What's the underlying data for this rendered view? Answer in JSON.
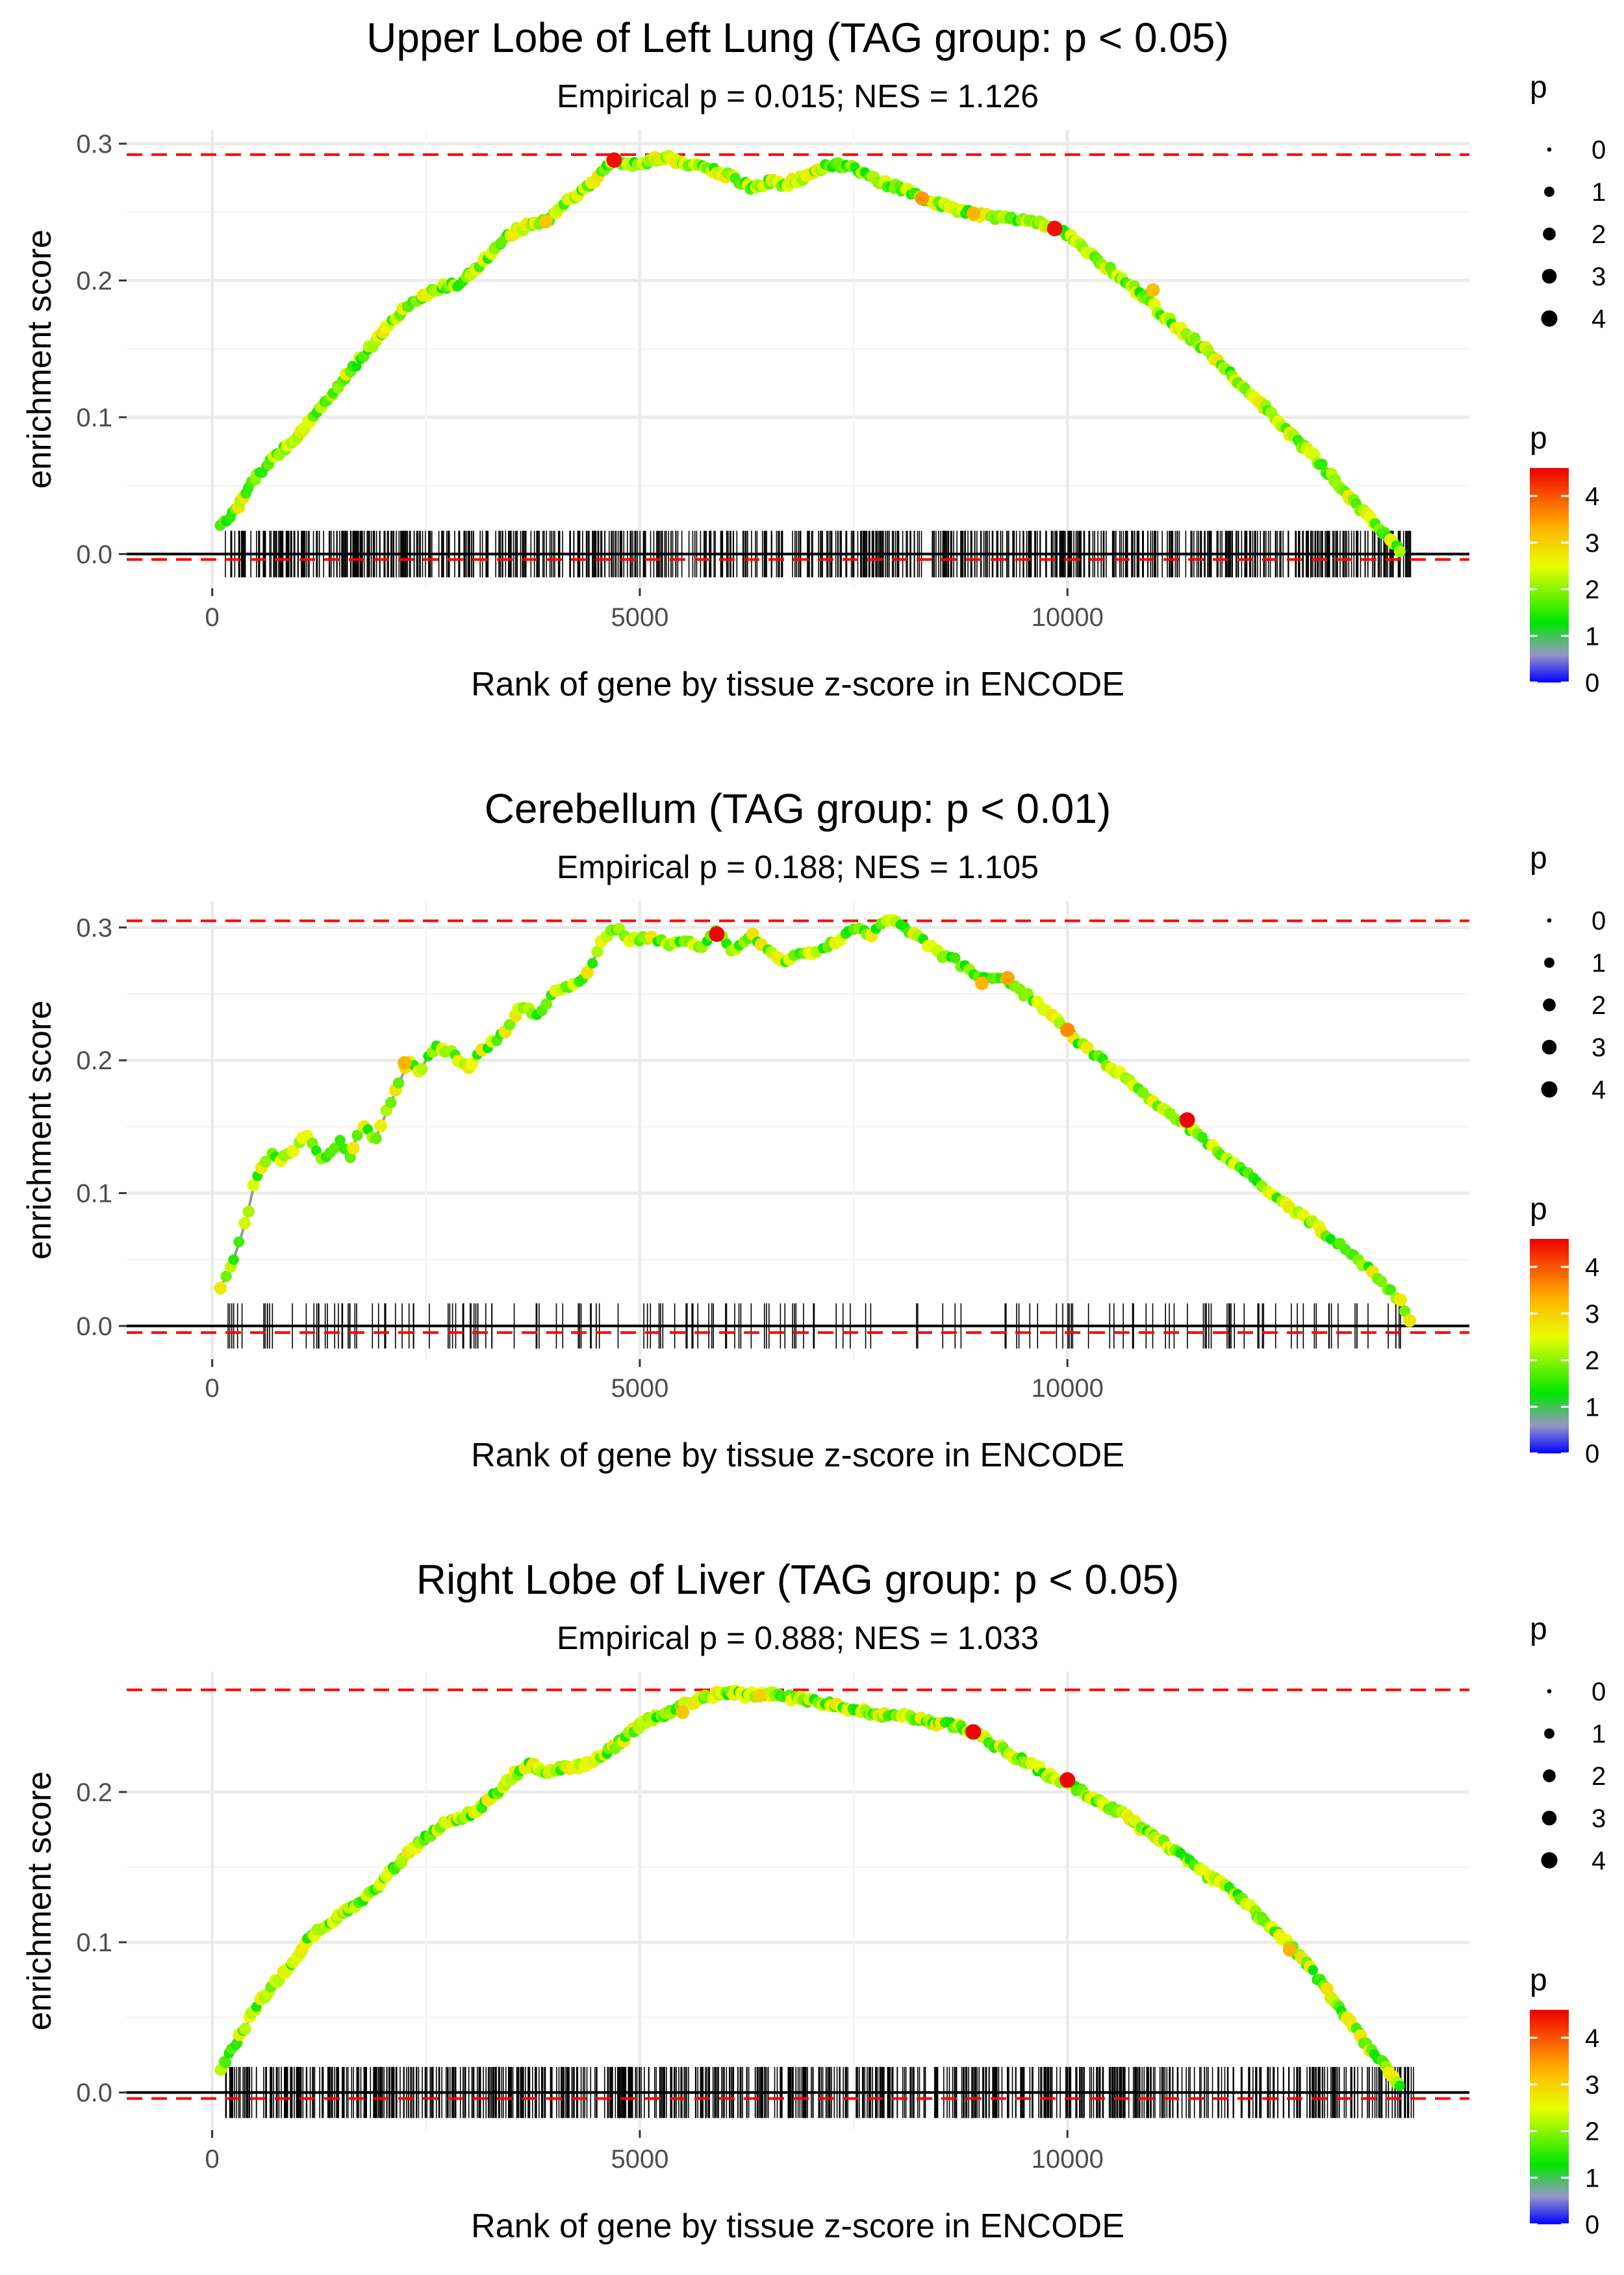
{
  "chart_data": [
    {
      "type": "line",
      "title": "Upper Lobe of Left Lung (TAG group: p < 0.05)",
      "subtitle": "Empirical p = 0.015; NES = 1.126",
      "xlabel": "Rank of gene by tissue z-score in ENCODE",
      "ylabel": "enrichment score",
      "xlim": [
        -1000,
        14700
      ],
      "ylim": [
        -0.025,
        0.31
      ],
      "x_ticks": [
        0,
        5000,
        10000
      ],
      "x_tick_labels": [
        "0",
        "5000",
        "10000"
      ],
      "y_ticks": [
        0.0,
        0.1,
        0.2,
        0.3
      ],
      "y_tick_labels": [
        "0.0",
        "0.1",
        "0.2",
        "0.3"
      ],
      "max_es": 0.292,
      "min_es": -0.004,
      "curve": {
        "x": [
          100,
          300,
          500,
          700,
          900,
          1100,
          1300,
          1500,
          1700,
          1900,
          2100,
          2300,
          2500,
          2700,
          2900,
          3100,
          3300,
          3500,
          3700,
          3900,
          4100,
          4300,
          4500,
          4700,
          4900,
          5100,
          5300,
          5500,
          5700,
          5900,
          6100,
          6300,
          6500,
          6700,
          6900,
          7100,
          7300,
          7500,
          7700,
          7900,
          8100,
          8300,
          8500,
          8700,
          8900,
          9100,
          9300,
          9500,
          9700,
          9900,
          10100,
          10300,
          10500,
          10700,
          10900,
          11100,
          11300,
          11500,
          11700,
          11900,
          12100,
          12300,
          12500,
          12700,
          12900,
          13100,
          13300,
          13500,
          13700,
          13900
        ],
        "y": [
          0.02,
          0.035,
          0.055,
          0.07,
          0.08,
          0.095,
          0.11,
          0.125,
          0.14,
          0.155,
          0.17,
          0.182,
          0.19,
          0.195,
          0.198,
          0.21,
          0.222,
          0.235,
          0.24,
          0.243,
          0.255,
          0.265,
          0.275,
          0.288,
          0.285,
          0.287,
          0.29,
          0.285,
          0.283,
          0.28,
          0.275,
          0.268,
          0.272,
          0.27,
          0.275,
          0.282,
          0.285,
          0.282,
          0.276,
          0.27,
          0.266,
          0.26,
          0.256,
          0.252,
          0.249,
          0.246,
          0.245,
          0.243,
          0.241,
          0.238,
          0.228,
          0.218,
          0.208,
          0.198,
          0.188,
          0.175,
          0.165,
          0.155,
          0.145,
          0.133,
          0.12,
          0.108,
          0.095,
          0.082,
          0.07,
          0.056,
          0.042,
          0.028,
          0.015,
          0.003
        ]
      },
      "highlight_points": [
        {
          "x": 4700,
          "y": 0.288,
          "p": 4.5
        },
        {
          "x": 9850,
          "y": 0.238,
          "p": 4.5
        },
        {
          "x": 8300,
          "y": 0.26,
          "p": 3.5
        },
        {
          "x": 8900,
          "y": 0.249,
          "p": 3.3
        },
        {
          "x": 11000,
          "y": 0.193,
          "p": 3.2
        },
        {
          "x": 3900,
          "y": 0.243,
          "p": 3.1
        }
      ],
      "gene_hit_count": 780,
      "gene_hit_density": "dense",
      "size_legend": {
        "title": "p",
        "values": [
          "0",
          "1",
          "2",
          "3",
          "4"
        ]
      },
      "color_legend": {
        "title": "p",
        "values": [
          "0",
          "1",
          "2",
          "3",
          "4"
        ],
        "colors": [
          "#0000ff",
          "#9999bb",
          "#00ff00",
          "#ffff00",
          "#ff0000"
        ]
      }
    },
    {
      "type": "line",
      "title": "Cerebellum (TAG group: p < 0.01)",
      "subtitle": "Empirical p = 0.188; NES = 1.105",
      "xlabel": "Rank of gene by tissue z-score in ENCODE",
      "ylabel": "enrichment score",
      "xlim": [
        -1000,
        14700
      ],
      "ylim": [
        -0.025,
        0.32
      ],
      "x_ticks": [
        0,
        5000,
        10000
      ],
      "x_tick_labels": [
        "0",
        "5000",
        "10000"
      ],
      "y_ticks": [
        0.0,
        0.1,
        0.2,
        0.3
      ],
      "y_tick_labels": [
        "0.0",
        "0.1",
        "0.2",
        "0.3"
      ],
      "max_es": 0.305,
      "min_es": -0.005,
      "curve": {
        "x": [
          100,
          200,
          300,
          400,
          500,
          600,
          700,
          800,
          900,
          1000,
          1100,
          1300,
          1400,
          1500,
          1600,
          1700,
          1800,
          1900,
          2000,
          2100,
          2200,
          2300,
          2400,
          2600,
          2800,
          3000,
          3200,
          3400,
          3600,
          3800,
          4000,
          4200,
          4400,
          4550,
          4700,
          4900,
          5100,
          5300,
          5500,
          5700,
          5900,
          6100,
          6300,
          6500,
          6700,
          6900,
          7100,
          7300,
          7500,
          7700,
          7900,
          8100,
          8300,
          8500,
          8700,
          8900,
          9100,
          9300,
          9500,
          9700,
          9900,
          10100,
          10300,
          10500,
          10700,
          10900,
          11100,
          11300,
          11500,
          11700,
          11900,
          12100,
          12300,
          12500,
          12700,
          12900,
          13100,
          13300,
          13500,
          13700,
          13900,
          14000
        ],
        "y": [
          0.03,
          0.04,
          0.06,
          0.08,
          0.11,
          0.12,
          0.13,
          0.125,
          0.13,
          0.135,
          0.145,
          0.125,
          0.13,
          0.14,
          0.125,
          0.145,
          0.15,
          0.14,
          0.155,
          0.17,
          0.185,
          0.2,
          0.19,
          0.21,
          0.205,
          0.195,
          0.21,
          0.22,
          0.24,
          0.235,
          0.25,
          0.255,
          0.265,
          0.29,
          0.3,
          0.29,
          0.292,
          0.288,
          0.29,
          0.285,
          0.3,
          0.28,
          0.295,
          0.282,
          0.275,
          0.28,
          0.282,
          0.29,
          0.3,
          0.295,
          0.305,
          0.3,
          0.29,
          0.28,
          0.275,
          0.265,
          0.262,
          0.26,
          0.25,
          0.24,
          0.228,
          0.215,
          0.205,
          0.195,
          0.185,
          0.175,
          0.163,
          0.155,
          0.145,
          0.135,
          0.125,
          0.115,
          0.105,
          0.095,
          0.085,
          0.075,
          0.065,
          0.055,
          0.045,
          0.032,
          0.018,
          0.005
        ]
      },
      "highlight_points": [
        {
          "x": 5900,
          "y": 0.295,
          "p": 4.6
        },
        {
          "x": 11400,
          "y": 0.155,
          "p": 4.6
        },
        {
          "x": 9300,
          "y": 0.262,
          "p": 3.4
        },
        {
          "x": 10000,
          "y": 0.223,
          "p": 3.6
        },
        {
          "x": 2250,
          "y": 0.198,
          "p": 3.3
        },
        {
          "x": 9000,
          "y": 0.258,
          "p": 3.3
        }
      ],
      "gene_hit_count": 170,
      "gene_hit_density": "sparse",
      "size_legend": {
        "title": "p",
        "values": [
          "0",
          "1",
          "2",
          "3",
          "4"
        ]
      },
      "color_legend": {
        "title": "p",
        "values": [
          "0",
          "1",
          "2",
          "3",
          "4"
        ],
        "colors": [
          "#0000ff",
          "#9999bb",
          "#00ff00",
          "#ffff00",
          "#ff0000"
        ]
      }
    },
    {
      "type": "line",
      "title": "Right Lobe of Liver (TAG group: p < 0.05)",
      "subtitle": "Empirical p = 0.888; NES = 1.033",
      "xlabel": "Rank of gene by tissue z-score in ENCODE",
      "ylabel": "enrichment score",
      "xlim": [
        -1000,
        14700
      ],
      "ylim": [
        -0.025,
        0.28
      ],
      "x_ticks": [
        0,
        5000,
        10000
      ],
      "x_tick_labels": [
        "0",
        "5000",
        "10000"
      ],
      "y_ticks": [
        0.0,
        0.1,
        0.2
      ],
      "y_tick_labels": [
        "0.0",
        "0.1",
        "0.2"
      ],
      "max_es": 0.268,
      "min_es": -0.004,
      "curve": {
        "x": [
          100,
          300,
          500,
          700,
          900,
          1100,
          1300,
          1500,
          1700,
          1900,
          2100,
          2300,
          2500,
          2700,
          2900,
          3100,
          3300,
          3500,
          3700,
          3900,
          4100,
          4300,
          4500,
          4700,
          4900,
          5100,
          5300,
          5500,
          5700,
          5900,
          6100,
          6300,
          6500,
          6700,
          6900,
          7100,
          7300,
          7500,
          7700,
          7900,
          8100,
          8300,
          8500,
          8700,
          8900,
          9100,
          9300,
          9500,
          9700,
          9900,
          10100,
          10300,
          10500,
          10700,
          10900,
          11100,
          11300,
          11500,
          11700,
          11900,
          12100,
          12300,
          12500,
          12700,
          12900,
          13100,
          13300,
          13500,
          13700,
          13900
        ],
        "y": [
          0.015,
          0.035,
          0.055,
          0.07,
          0.085,
          0.1,
          0.11,
          0.118,
          0.125,
          0.135,
          0.148,
          0.16,
          0.17,
          0.178,
          0.182,
          0.188,
          0.198,
          0.21,
          0.218,
          0.214,
          0.216,
          0.218,
          0.222,
          0.23,
          0.24,
          0.248,
          0.252,
          0.258,
          0.262,
          0.265,
          0.266,
          0.264,
          0.265,
          0.263,
          0.262,
          0.26,
          0.257,
          0.255,
          0.253,
          0.251,
          0.25,
          0.248,
          0.246,
          0.244,
          0.24,
          0.233,
          0.226,
          0.22,
          0.214,
          0.208,
          0.203,
          0.196,
          0.19,
          0.183,
          0.175,
          0.167,
          0.159,
          0.15,
          0.142,
          0.135,
          0.125,
          0.114,
          0.103,
          0.092,
          0.078,
          0.062,
          0.047,
          0.032,
          0.018,
          0.004
        ]
      },
      "highlight_points": [
        {
          "x": 8900,
          "y": 0.24,
          "p": 4.6
        },
        {
          "x": 10000,
          "y": 0.208,
          "p": 4.6
        },
        {
          "x": 12600,
          "y": 0.095,
          "p": 3.3
        },
        {
          "x": 5500,
          "y": 0.253,
          "p": 3.1
        },
        {
          "x": 6400,
          "y": 0.264,
          "p": 3.0
        }
      ],
      "gene_hit_count": 800,
      "gene_hit_density": "dense",
      "size_legend": {
        "title": "p",
        "values": [
          "0",
          "1",
          "2",
          "3",
          "4"
        ]
      },
      "color_legend": {
        "title": "p",
        "values": [
          "0",
          "1",
          "2",
          "3",
          "4"
        ],
        "colors": [
          "#0000ff",
          "#9999bb",
          "#00ff00",
          "#ffff00",
          "#ff0000"
        ]
      }
    }
  ]
}
